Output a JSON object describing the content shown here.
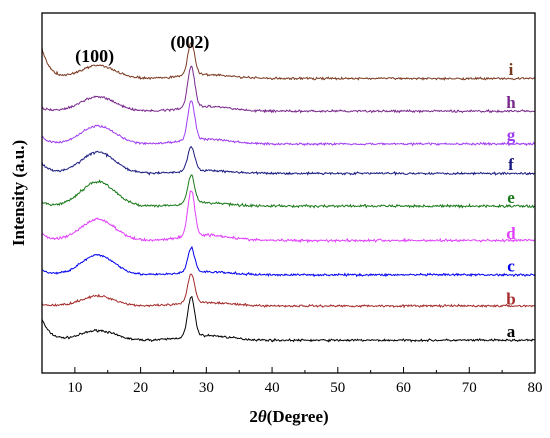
{
  "chart_data": {
    "type": "line",
    "xlabel": "2θ(Degree)",
    "xlabel_prefix": "2",
    "xlabel_theta": "θ",
    "xlabel_suffix": "(Degree)",
    "ylabel": "Intensity (a.u.)",
    "xlim": [
      5,
      80
    ],
    "xticks": [
      10,
      20,
      30,
      40,
      50,
      60,
      70,
      80
    ],
    "ylim": [
      0,
      11
    ],
    "yticks_labeled": false,
    "grid": false,
    "annotations": [
      {
        "text": "(100)",
        "x": 13
      },
      {
        "text": "(002)",
        "x": 27.5
      }
    ],
    "series": [
      {
        "name": "a",
        "color": "#000000",
        "offset": 1.0,
        "start_level": 0.65,
        "base_level": 0.0,
        "hump": 0.3,
        "peak": 1.2,
        "noise": 0.05
      },
      {
        "name": "b",
        "color": "#a52a2a",
        "offset": 2.0,
        "start_level": 0.05,
        "base_level": 0.05,
        "hump": 0.3,
        "peak": 0.9,
        "noise": 0.05
      },
      {
        "name": "c",
        "color": "#0000ee",
        "offset": 3.0,
        "start_level": 0.15,
        "base_level": 0.0,
        "hump": 0.6,
        "peak": 0.75,
        "noise": 0.05
      },
      {
        "name": "d",
        "color": "#e040fb",
        "offset": 4.0,
        "start_level": 0.2,
        "base_level": 0.05,
        "hump": 0.65,
        "peak": 1.4,
        "noise": 0.06
      },
      {
        "name": "e",
        "color": "#1a7a1a",
        "offset": 5.1,
        "start_level": 0.1,
        "base_level": 0.0,
        "hump": 0.75,
        "peak": 0.85,
        "noise": 0.06
      },
      {
        "name": "f",
        "color": "#1a1a80",
        "offset": 6.1,
        "start_level": 0.3,
        "base_level": 0.0,
        "hump": 0.65,
        "peak": 0.75,
        "noise": 0.05
      },
      {
        "name": "g",
        "color": "#a03cf0",
        "offset": 7.0,
        "start_level": 0.2,
        "base_level": 0.0,
        "hump": 0.55,
        "peak": 1.2,
        "noise": 0.05
      },
      {
        "name": "h",
        "color": "#7a2a8c",
        "offset": 8.0,
        "start_level": 0.1,
        "base_level": 0.0,
        "hump": 0.45,
        "peak": 1.25,
        "noise": 0.05
      },
      {
        "name": "i",
        "color": "#7a3a20",
        "offset": 9.0,
        "start_level": 0.9,
        "base_level": 0.0,
        "hump": 0.4,
        "peak": 1.0,
        "noise": 0.05
      }
    ]
  }
}
